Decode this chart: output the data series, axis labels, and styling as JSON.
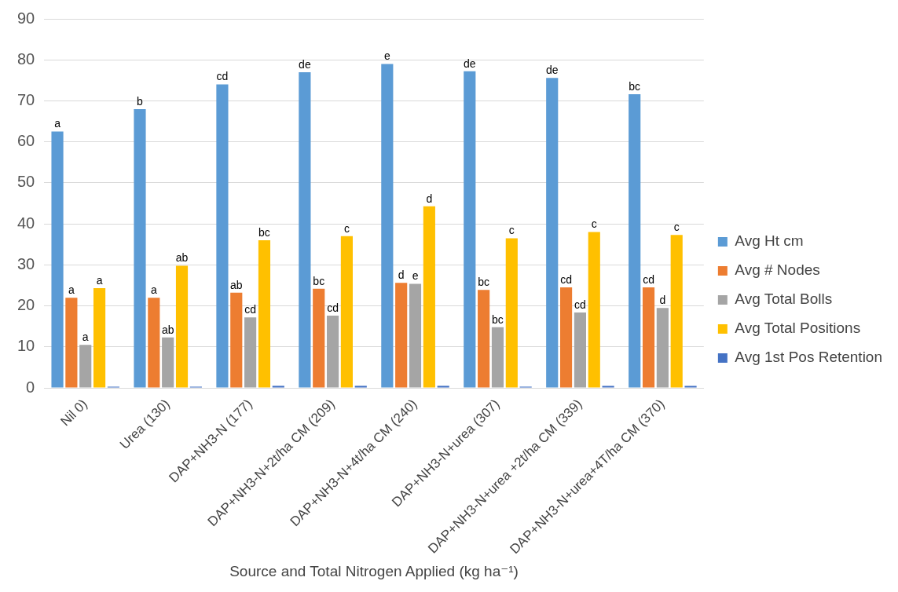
{
  "chart_data": {
    "type": "bar",
    "xlabel": "Source and Total Nitrogen Applied (kg ha⁻¹)",
    "categories": [
      "Nil 0)",
      "Urea (130)",
      "DAP+NH3-N (177)",
      "DAP+NH3-N+2t/ha CM (209)",
      "DAP+NH3-N+4t/ha CM (240)",
      "DAP+NH3-N+urea (307)",
      "DAP+NH3-N+urea +2t/ha CM (339)",
      "DAP+NH3-N+urea+4T/ha CM (370)"
    ],
    "series": [
      {
        "name": "Avg Ht cm",
        "color": "#5b9bd5",
        "values": [
          62.5,
          68,
          74,
          77,
          79,
          77.2,
          75.6,
          71.6
        ],
        "value_labels": [
          "a",
          "b",
          "cd",
          "de",
          "e",
          "de",
          "de",
          "bc"
        ]
      },
      {
        "name": "Avg # Nodes",
        "color": "#ed7d31",
        "values": [
          22,
          22,
          23.2,
          24.2,
          25.6,
          23.9,
          24.5,
          24.5
        ],
        "value_labels": [
          "a",
          "a",
          "ab",
          "bc",
          "d",
          "bc",
          "cd",
          "cd"
        ]
      },
      {
        "name": "Avg Total Bolls",
        "color": "#a5a5a5",
        "values": [
          10.5,
          12.3,
          17.2,
          17.6,
          25.4,
          14.8,
          18.4,
          19.5
        ],
        "value_labels": [
          "a",
          "ab",
          "cd",
          "cd",
          "e",
          "bc",
          "cd",
          "d"
        ]
      },
      {
        "name": "Avg Total Positions",
        "color": "#ffc000",
        "values": [
          24.3,
          29.8,
          36,
          37,
          44.3,
          36.5,
          38,
          37.3
        ],
        "value_labels": [
          "a",
          "ab",
          "bc",
          "c",
          "d",
          "c",
          "c",
          "c"
        ]
      },
      {
        "name": "Avg 1st Pos Retention",
        "color": "#4472c4",
        "values": [
          0.3,
          0.3,
          0.5,
          0.5,
          0.5,
          0.3,
          0.5,
          0.5
        ]
      }
    ],
    "ylim": [
      0,
      90
    ],
    "yticks": [
      0,
      10,
      20,
      30,
      40,
      50,
      60,
      70,
      80,
      90
    ],
    "grid": "y",
    "legend": "right"
  }
}
